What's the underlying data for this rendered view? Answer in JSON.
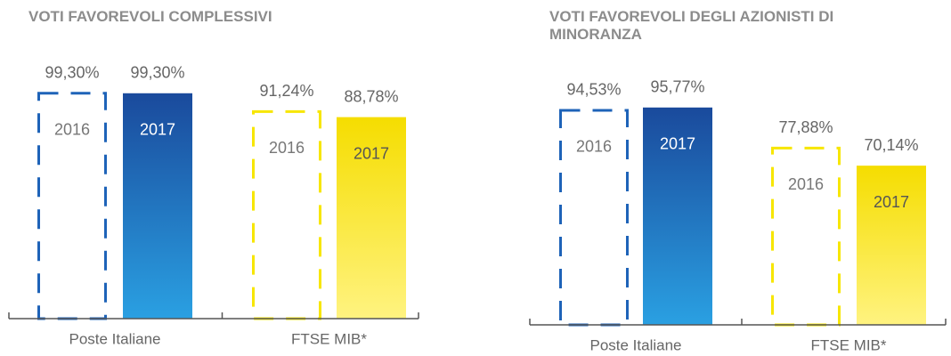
{
  "chart_data": [
    {
      "type": "bar",
      "title": "VOTI FAVOREVOLI COMPLESSIVI",
      "categories": [
        "Poste Italiane",
        "FTSE MIB*"
      ],
      "category_colors": [
        "#1e63b8",
        "#f7e600"
      ],
      "ylim": [
        0,
        100
      ],
      "series": [
        {
          "name": "2016",
          "style": "dashed",
          "values": [
            99.3,
            91.24
          ],
          "value_labels": [
            "99,30%",
            "91,24%"
          ]
        },
        {
          "name": "2017",
          "style": "filled",
          "values": [
            99.3,
            88.78
          ],
          "value_labels": [
            "99,30%",
            "88,78%"
          ]
        }
      ]
    },
    {
      "type": "bar",
      "title": "VOTI FAVOREVOLI DEGLI AZIONISTI DI MINORANZA",
      "categories": [
        "Poste Italiane",
        "FTSE MIB*"
      ],
      "category_colors": [
        "#1e63b8",
        "#f7e600"
      ],
      "ylim": [
        0,
        100
      ],
      "series": [
        {
          "name": "2016",
          "style": "dashed",
          "values": [
            94.53,
            77.88
          ],
          "value_labels": [
            "94,53%",
            "77,88%"
          ]
        },
        {
          "name": "2017",
          "style": "filled",
          "values": [
            95.77,
            70.14
          ],
          "value_labels": [
            "95,77%",
            "70,14%"
          ]
        }
      ]
    }
  ]
}
